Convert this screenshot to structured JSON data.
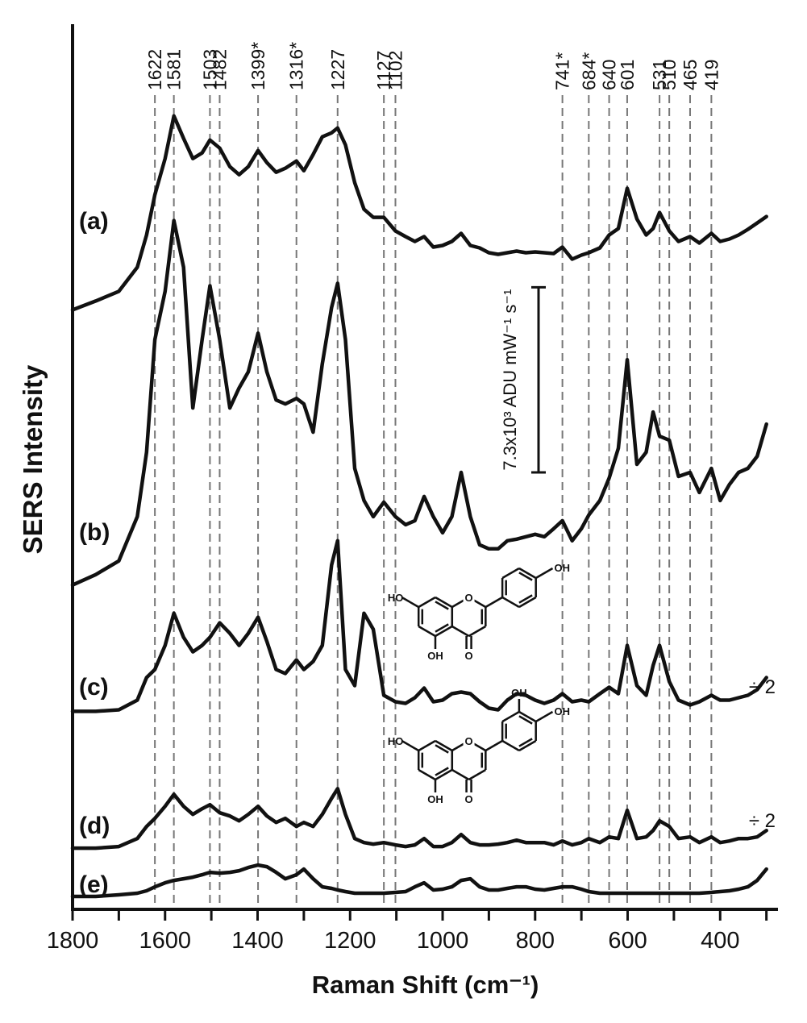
{
  "chart_data": {
    "type": "line",
    "xlabel": "Raman Shift (cm⁻¹)",
    "ylabel": "SERS Intensity",
    "xlim": [
      1800,
      275
    ],
    "ylim": [
      0,
      110
    ],
    "xticks": [
      1800,
      1600,
      1400,
      1200,
      1000,
      800,
      600,
      400
    ],
    "xminor_ticks": [
      1700,
      1500,
      1300,
      1100,
      900,
      700,
      500,
      300
    ],
    "peaks": [
      1622,
      1581,
      1503,
      1482,
      {
        "value": 1399,
        "label": "1399*"
      },
      {
        "value": 1316,
        "label": "1316*"
      },
      1227,
      1127,
      1102,
      {
        "value": 741,
        "label": "741*"
      },
      {
        "value": 684,
        "label": "684*"
      },
      640,
      601,
      531,
      510,
      465,
      419
    ],
    "scale_bar": {
      "label": "7.3x10³ ADU mW⁻¹ s⁻¹",
      "length": 23
    },
    "structures": [
      {
        "atoms": [
          "HO",
          "OH",
          "O",
          "O",
          "OH"
        ]
      },
      {
        "atoms": [
          "HO",
          "OH",
          "O",
          "O",
          "OH",
          "OH"
        ]
      }
    ],
    "x": [
      1800,
      1750,
      1700,
      1660,
      1640,
      1622,
      1600,
      1581,
      1560,
      1540,
      1520,
      1503,
      1482,
      1460,
      1440,
      1420,
      1399,
      1380,
      1360,
      1340,
      1316,
      1300,
      1280,
      1260,
      1240,
      1227,
      1210,
      1190,
      1170,
      1150,
      1127,
      1102,
      1080,
      1060,
      1040,
      1020,
      1000,
      980,
      960,
      940,
      920,
      900,
      880,
      860,
      840,
      820,
      800,
      780,
      760,
      741,
      720,
      700,
      684,
      660,
      640,
      620,
      601,
      580,
      560,
      545,
      531,
      510,
      490,
      465,
      445,
      419,
      400,
      380,
      360,
      340,
      320,
      300
    ],
    "series": [
      {
        "name": "(a)",
        "color": "#111111",
        "values": [
          74.5,
          75.6,
          76.8,
          79.8,
          83.8,
          88.8,
          93.3,
          98.6,
          95.8,
          93.3,
          94,
          95.6,
          94.6,
          92.3,
          91.3,
          92.3,
          94.3,
          92.8,
          91.6,
          92.1,
          93,
          91.8,
          93.8,
          96,
          96.5,
          97.1,
          95,
          90.3,
          87,
          86,
          86,
          84.3,
          83.6,
          83,
          83.6,
          82.3,
          82.5,
          83,
          84,
          82.5,
          82.2,
          81.6,
          81.4,
          81.6,
          81.8,
          81.6,
          81.7,
          81.6,
          81.5,
          82.3,
          80.8,
          81.3,
          81.6,
          82.2,
          83.8,
          84.6,
          89.6,
          85.8,
          83.8,
          84.6,
          86.6,
          84.3,
          83,
          83.6,
          82.8,
          84,
          83,
          83.3,
          83.8,
          84.5,
          85.3,
          86.1
        ]
      },
      {
        "name": "(b)",
        "color": "#111111",
        "values": [
          40.3,
          41.6,
          43.3,
          48.8,
          56.8,
          70.8,
          76.8,
          85.6,
          79.8,
          62.3,
          70.8,
          77.5,
          70.8,
          62.3,
          64.8,
          66.8,
          71.6,
          66.8,
          63.3,
          62.8,
          63.5,
          62.8,
          59.3,
          67.8,
          74.8,
          77.8,
          70.8,
          54.8,
          50.8,
          48.8,
          50.6,
          48.8,
          47.8,
          48.3,
          51.3,
          48.8,
          46.8,
          48.8,
          54.3,
          48.8,
          45.3,
          44.8,
          44.8,
          45.8,
          46,
          46.3,
          46.6,
          46.3,
          47.3,
          48.3,
          45.8,
          47.3,
          49,
          50.8,
          53.6,
          57.3,
          68.3,
          55.3,
          56.8,
          61.8,
          58.8,
          58.3,
          53.8,
          54.3,
          51.8,
          54.8,
          50.8,
          52.8,
          54.3,
          54.8,
          56.3,
          60.3
        ]
      },
      {
        "name": "(c)",
        "color": "#111111",
        "annotation": "÷ 2",
        "values": [
          24.6,
          24.6,
          24.8,
          26,
          28.8,
          29.8,
          32.8,
          36.8,
          33.8,
          32,
          32.8,
          33.8,
          35.6,
          34.3,
          32.8,
          34.3,
          36.3,
          33.3,
          29.8,
          29.3,
          31,
          29.8,
          30.8,
          32.8,
          42.8,
          45.8,
          29.8,
          27.8,
          36.8,
          34.8,
          26.6,
          25.8,
          25.6,
          26.3,
          27.5,
          25.8,
          26,
          26.8,
          27,
          26.8,
          25.8,
          25,
          24.8,
          26,
          26.8,
          26.6,
          26,
          25.6,
          26,
          26.8,
          25.8,
          26,
          25.8,
          26.8,
          27.6,
          26.8,
          32.8,
          27.8,
          26.6,
          30.3,
          32.8,
          28.3,
          26,
          25.4,
          25.8,
          26.6,
          26,
          26,
          26.3,
          26.6,
          27.3,
          28.8
        ]
      },
      {
        "name": "(d)",
        "color": "#111111",
        "annotation": "÷ 2",
        "values": [
          7.6,
          7.6,
          7.8,
          8.8,
          10.3,
          11.3,
          12.8,
          14.3,
          12.8,
          11.8,
          12.5,
          13,
          12,
          11.6,
          11,
          11.8,
          12.8,
          11.6,
          10.8,
          11.3,
          10.3,
          10.8,
          10.3,
          11.8,
          13.8,
          15,
          11.8,
          8.8,
          8.3,
          8.1,
          8.3,
          8,
          7.8,
          8,
          8.8,
          7.8,
          7.8,
          8.3,
          9.3,
          8.3,
          8,
          8,
          8.1,
          8.3,
          8.6,
          8.3,
          8.3,
          8.3,
          8,
          8.5,
          8,
          8.3,
          8.8,
          8.3,
          9,
          8.8,
          12.3,
          8.8,
          9,
          9.8,
          11,
          10.3,
          8.8,
          9,
          8.3,
          9,
          8.3,
          8.5,
          8.8,
          8.8,
          9,
          9.8
        ]
      },
      {
        "name": "(e)",
        "color": "#111111",
        "values": [
          1.6,
          1.6,
          1.8,
          2,
          2.3,
          2.8,
          3.3,
          3.6,
          3.8,
          4,
          4.3,
          4.6,
          4.5,
          4.6,
          4.8,
          5.2,
          5.5,
          5.3,
          4.6,
          3.8,
          4.3,
          5,
          3.8,
          2.8,
          2.6,
          2.4,
          2.2,
          2,
          2,
          2,
          2,
          2.1,
          2.2,
          2.8,
          3.3,
          2.4,
          2.5,
          2.8,
          3.6,
          3.8,
          2.8,
          2.4,
          2.4,
          2.6,
          2.8,
          2.8,
          2.5,
          2.4,
          2.6,
          2.8,
          2.8,
          2.5,
          2.2,
          2,
          2,
          2,
          2,
          2,
          2,
          2,
          2,
          2,
          2,
          2,
          2,
          2.1,
          2.2,
          2.3,
          2.5,
          2.8,
          3.6,
          5
        ]
      }
    ]
  }
}
